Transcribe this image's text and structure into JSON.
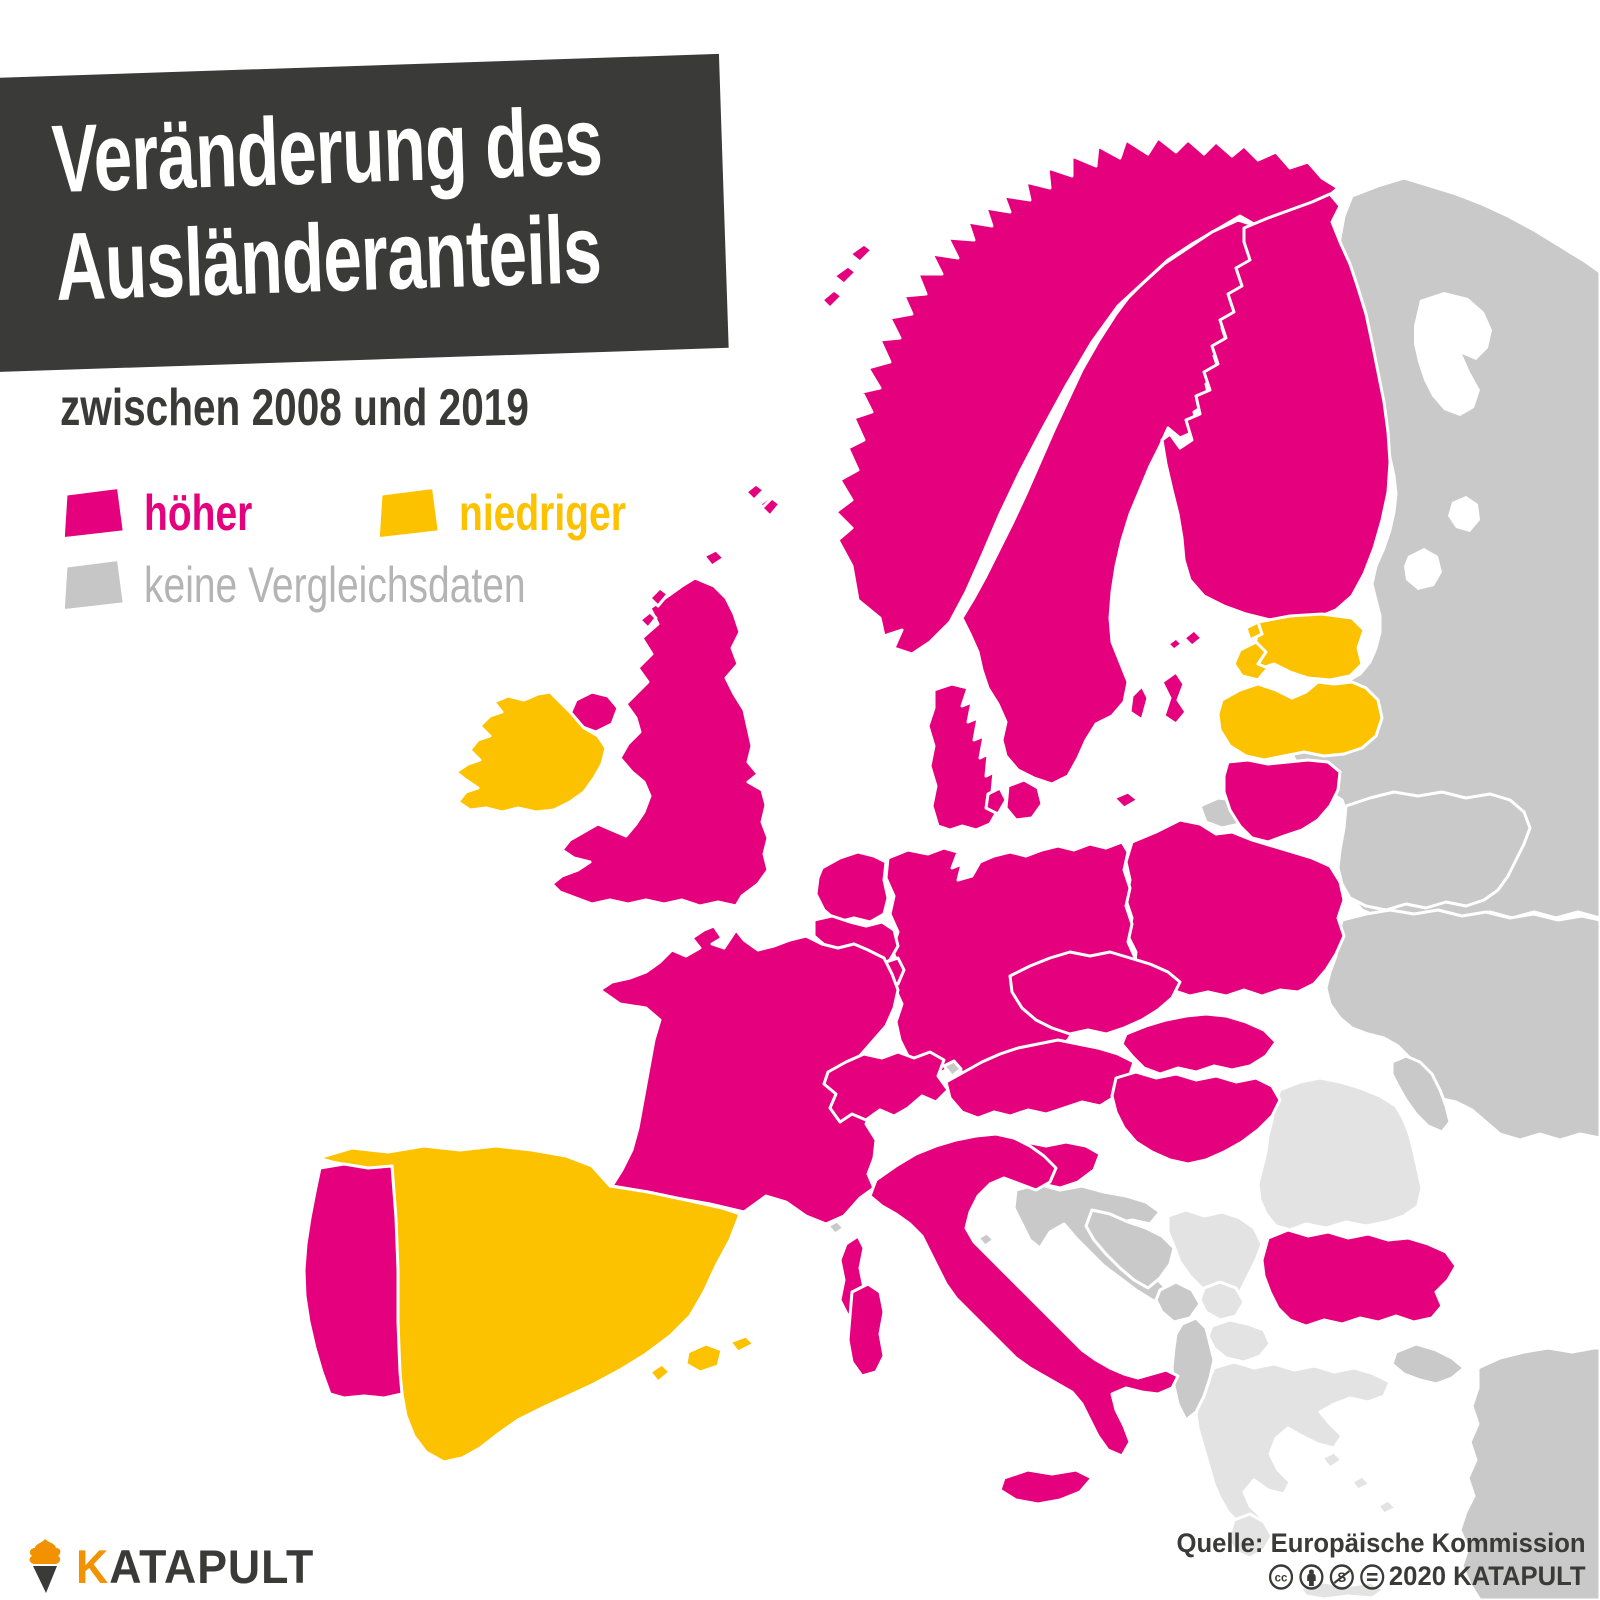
{
  "title": {
    "line1": "Veränderung des",
    "line2": "Ausländeranteils"
  },
  "subtitle": "zwischen 2008 und 2019",
  "legend": {
    "items": [
      {
        "id": "higher",
        "label": "höher",
        "color": "#e5007d",
        "label_color": "#e5007d"
      },
      {
        "id": "lower",
        "label": "niedriger",
        "color": "#fcc200",
        "label_color": "#fcc200"
      },
      {
        "id": "no_data",
        "label": "keine Vergleichsdaten",
        "color": "#c6c6c6",
        "label_color": "#b4b4b4"
      }
    ]
  },
  "map": {
    "colors": {
      "higher": "#e5007d",
      "lower": "#fcc200",
      "no_data": "#c9c9c9",
      "unlabeled": "#e3e3e3",
      "sea": "#ffffff",
      "border": "#ffffff"
    },
    "countries": [
      {
        "id": "russia",
        "name": "Russland",
        "status": "no_data"
      },
      {
        "id": "kaliningrad",
        "name": "Kaliningrad (Russland)",
        "status": "no_data"
      },
      {
        "id": "belarus",
        "name": "Belarus",
        "status": "no_data"
      },
      {
        "id": "ukraine",
        "name": "Ukraine",
        "status": "no_data"
      },
      {
        "id": "moldova",
        "name": "Moldau",
        "status": "no_data"
      },
      {
        "id": "turkey",
        "name": "Türkei",
        "status": "no_data"
      },
      {
        "id": "romania",
        "name": "Rumänien",
        "status": "unlabeled"
      },
      {
        "id": "serbia",
        "name": "Serbien",
        "status": "unlabeled"
      },
      {
        "id": "kosovo",
        "name": "Kosovo",
        "status": "unlabeled"
      },
      {
        "id": "north_macedonia",
        "name": "Nordmazedonien",
        "status": "unlabeled"
      },
      {
        "id": "greece",
        "name": "Griechenland",
        "status": "unlabeled"
      },
      {
        "id": "croatia",
        "name": "Kroatien",
        "status": "no_data"
      },
      {
        "id": "bosnia",
        "name": "Bosnien und Herzegowina",
        "status": "no_data"
      },
      {
        "id": "montenegro",
        "name": "Montenegro",
        "status": "no_data"
      },
      {
        "id": "albania",
        "name": "Albanien",
        "status": "no_data"
      },
      {
        "id": "norway",
        "name": "Norwegen",
        "status": "higher"
      },
      {
        "id": "sweden",
        "name": "Schweden",
        "status": "higher"
      },
      {
        "id": "finland",
        "name": "Finnland",
        "status": "higher"
      },
      {
        "id": "denmark",
        "name": "Dänemark",
        "status": "higher"
      },
      {
        "id": "estonia",
        "name": "Estland",
        "status": "lower"
      },
      {
        "id": "latvia",
        "name": "Lettland",
        "status": "lower"
      },
      {
        "id": "lithuania",
        "name": "Litauen",
        "status": "higher"
      },
      {
        "id": "poland",
        "name": "Polen",
        "status": "higher"
      },
      {
        "id": "germany",
        "name": "Deutschland",
        "status": "higher"
      },
      {
        "id": "netherlands",
        "name": "Niederlande",
        "status": "higher"
      },
      {
        "id": "belgium",
        "name": "Belgien",
        "status": "higher"
      },
      {
        "id": "luxembourg",
        "name": "Luxemburg",
        "status": "higher"
      },
      {
        "id": "france",
        "name": "Frankreich",
        "status": "higher"
      },
      {
        "id": "united_kingdom",
        "name": "Vereinigtes Königreich",
        "status": "higher"
      },
      {
        "id": "ireland",
        "name": "Irland",
        "status": "lower"
      },
      {
        "id": "spain",
        "name": "Spanien",
        "status": "lower"
      },
      {
        "id": "portugal",
        "name": "Portugal",
        "status": "higher"
      },
      {
        "id": "switzerland",
        "name": "Schweiz",
        "status": "higher"
      },
      {
        "id": "austria",
        "name": "Österreich",
        "status": "higher"
      },
      {
        "id": "czechia",
        "name": "Tschechien",
        "status": "higher"
      },
      {
        "id": "slovakia",
        "name": "Slowakei",
        "status": "higher"
      },
      {
        "id": "hungary",
        "name": "Ungarn",
        "status": "higher"
      },
      {
        "id": "slovenia",
        "name": "Slowenien",
        "status": "higher"
      },
      {
        "id": "italy",
        "name": "Italien",
        "status": "higher"
      },
      {
        "id": "bulgaria",
        "name": "Bulgarien",
        "status": "higher"
      },
      {
        "id": "liechtenstein",
        "name": "Liechtenstein",
        "status": "no_data"
      },
      {
        "id": "monaco",
        "name": "Monaco",
        "status": "no_data"
      },
      {
        "id": "san_marino",
        "name": "San Marino",
        "status": "no_data"
      }
    ]
  },
  "footer": {
    "logo_text_k": "K",
    "logo_text_rest": "ATAPULT",
    "logo_k_color": "#f39200",
    "logo_rest_color": "#3a3a38",
    "source_line1": "Quelle: Europäische Kommission",
    "source_line2": "2020 KATAPULT",
    "license_icons": [
      "cc",
      "by",
      "nc",
      "nd"
    ]
  }
}
